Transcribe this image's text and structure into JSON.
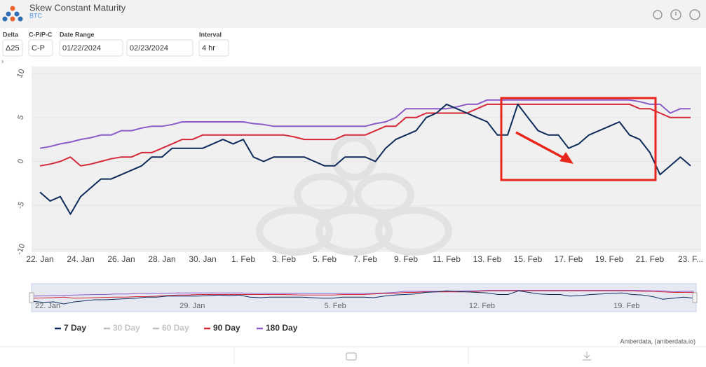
{
  "header": {
    "title": "Skew Constant Maturity",
    "subtitle": "BTC"
  },
  "controls": [
    {
      "label": "Delta",
      "value": "Δ25"
    },
    {
      "label": "C-P/P-C",
      "value": "C-P"
    },
    {
      "label": "Date Range",
      "value": "01/22/2024"
    },
    {
      "value": "02/23/2024"
    },
    {
      "label": "Interval",
      "value": "4 hr"
    }
  ],
  "chart_data": {
    "type": "line",
    "categories": [
      "22. Jan",
      null,
      null,
      null,
      "24. Jan",
      null,
      null,
      null,
      "26. Jan",
      null,
      null,
      null,
      "28. Jan",
      null,
      null,
      null,
      "30. Jan",
      null,
      null,
      null,
      "1. Feb",
      null,
      null,
      null,
      "3. Feb",
      null,
      null,
      null,
      "5. Feb",
      null,
      null,
      null,
      "7. Feb",
      null,
      null,
      null,
      "9. Feb",
      null,
      null,
      null,
      "11. Feb",
      null,
      null,
      null,
      "13. Feb",
      null,
      null,
      null,
      "15. Feb",
      null,
      null,
      null,
      "17. Feb",
      null,
      null,
      null,
      "19. Feb",
      null,
      null,
      null,
      "21. Feb",
      null,
      null,
      null,
      "23. F..."
    ],
    "series": [
      {
        "name": "7 Day",
        "color": "#0d2b5a",
        "values": [
          -3.5,
          -4.5,
          -4,
          -6,
          -4,
          -3,
          -2,
          -2,
          -1.5,
          -1,
          -0.5,
          0.5,
          0.5,
          1.5,
          1.5,
          1.5,
          1.5,
          2,
          2.5,
          2,
          2.5,
          0.5,
          0,
          0.5,
          0.5,
          0.5,
          0.5,
          0,
          -0.5,
          -0.5,
          0.5,
          0.5,
          0.5,
          0,
          1.5,
          2.5,
          3,
          3.5,
          5,
          5.5,
          6.5,
          6,
          5.5,
          5,
          4.5,
          3,
          3,
          6.5,
          5,
          3.5,
          3,
          3,
          1.5,
          2,
          3,
          3.5,
          4,
          4.5,
          3,
          2.5,
          1,
          -1.5,
          -0.5,
          0.5,
          -0.5
        ]
      },
      {
        "name": "90 Day",
        "color": "#d62839",
        "values": [
          -0.5,
          -0.3,
          0,
          0.5,
          -0.5,
          -0.3,
          0,
          0.3,
          0.5,
          0.5,
          1,
          1,
          1.5,
          2,
          2.5,
          2.5,
          3,
          3,
          3,
          3,
          3,
          3,
          3,
          3,
          3,
          2.8,
          2.5,
          2.5,
          2.5,
          2.5,
          3,
          3,
          3,
          3.5,
          4,
          4,
          5,
          5,
          5.5,
          5.5,
          5.5,
          5.5,
          5.5,
          6,
          6.5,
          6.5,
          6.5,
          6.5,
          6.5,
          6.5,
          6.5,
          6.5,
          6.5,
          6.5,
          6.5,
          6.5,
          6.5,
          6.5,
          6.5,
          6,
          6,
          5.5,
          5,
          5,
          5
        ]
      },
      {
        "name": "180 Day",
        "color": "#8a5cc7",
        "values": [
          1.5,
          1.7,
          2,
          2.2,
          2.5,
          2.7,
          3,
          3,
          3.5,
          3.5,
          3.8,
          4,
          4,
          4.2,
          4.5,
          4.5,
          4.5,
          4.5,
          4.5,
          4.5,
          4.5,
          4.3,
          4.2,
          4,
          4,
          4,
          4,
          4,
          4,
          4,
          4,
          4,
          4,
          4.3,
          4.5,
          5,
          6,
          6,
          6,
          6,
          6,
          6.2,
          6.5,
          6.5,
          7,
          7,
          7,
          7,
          7,
          7,
          7,
          7,
          7,
          7,
          7,
          7,
          7,
          7,
          7,
          6.8,
          6.5,
          6.5,
          5.5,
          6,
          6
        ]
      }
    ],
    "hidden_series": [
      {
        "name": "30 Day",
        "color": "#bdbdbd"
      },
      {
        "name": "60 Day",
        "color": "#bdbdbd"
      }
    ],
    "ylim": [
      -10,
      10
    ],
    "yticks": [
      -10,
      -5,
      0,
      5,
      10
    ],
    "grid": true
  },
  "navigator": {
    "labels": [
      "22. Jan",
      "29. Jan",
      "5. Feb",
      "12. Feb",
      "19. Feb"
    ]
  },
  "credit": "Amberdata, (amberdata.io)"
}
